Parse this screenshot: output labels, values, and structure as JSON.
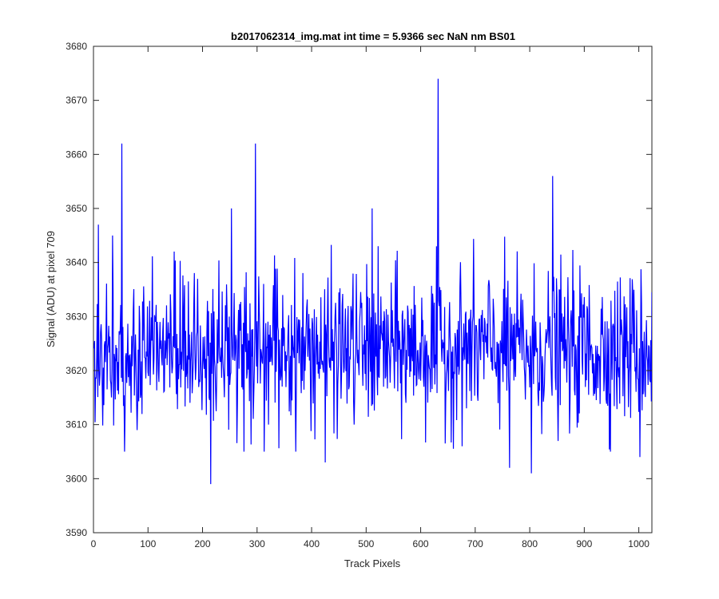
{
  "chart_data": {
    "type": "line",
    "title": "b2017062314_img.mat int time = 5.9366 sec  NaN nm BS01",
    "xlabel": "Track Pixels",
    "ylabel": "Signal (ADU) at pixel 709",
    "xlim": [
      0,
      1024
    ],
    "ylim": [
      3590,
      3680
    ],
    "xticks": [
      0,
      100,
      200,
      300,
      400,
      500,
      600,
      700,
      800,
      900,
      1000
    ],
    "yticks": [
      3590,
      3600,
      3610,
      3620,
      3630,
      3640,
      3650,
      3660,
      3670,
      3680
    ],
    "xtick_labels": [
      "0",
      "100",
      "200",
      "300",
      "400",
      "500",
      "600",
      "700",
      "800",
      "900",
      "1000"
    ],
    "ytick_labels": [
      "3590",
      "3600",
      "3610",
      "3620",
      "3630",
      "3640",
      "3650",
      "3660",
      "3670",
      "3680"
    ],
    "grid": false,
    "series": [
      {
        "color": "#0000ff",
        "x_start": 1,
        "x_step": 1,
        "count": 1024,
        "mean": 3624,
        "noise_std": 7,
        "seed": 709,
        "notable_points": [
          {
            "x": 9,
            "y": 3647
          },
          {
            "x": 35,
            "y": 3645
          },
          {
            "x": 52,
            "y": 3662
          },
          {
            "x": 80,
            "y": 3609
          },
          {
            "x": 215,
            "y": 3599
          },
          {
            "x": 253,
            "y": 3650
          },
          {
            "x": 297,
            "y": 3662
          },
          {
            "x": 425,
            "y": 3603
          },
          {
            "x": 511,
            "y": 3650
          },
          {
            "x": 632,
            "y": 3674
          },
          {
            "x": 763,
            "y": 3602
          },
          {
            "x": 803,
            "y": 3601
          },
          {
            "x": 842,
            "y": 3656
          },
          {
            "x": 1002,
            "y": 3604
          }
        ]
      }
    ]
  }
}
